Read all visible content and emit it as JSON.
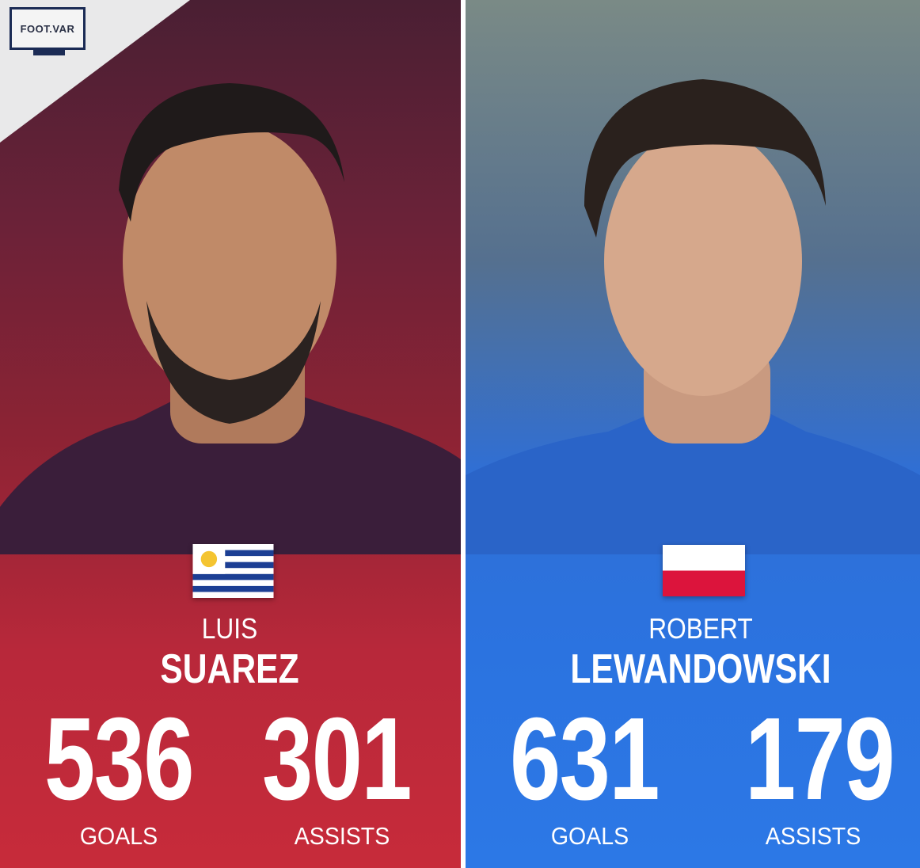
{
  "brand": {
    "logo_text": "FOOT.VAR"
  },
  "players": [
    {
      "first_name": "LUIS",
      "last_name": "SUAREZ",
      "flag": "uruguay",
      "goals": "536",
      "assists": "301",
      "goals_label": "GOALS",
      "assists_label": "ASSISTS",
      "panel_color": "#c72b3a"
    },
    {
      "first_name": "ROBERT",
      "last_name": "LEWANDOWSKI",
      "flag": "poland",
      "goals": "631",
      "assists": "179",
      "goals_label": "GOALS",
      "assists_label": "ASSISTS",
      "panel_color": "#2b73e0"
    }
  ]
}
